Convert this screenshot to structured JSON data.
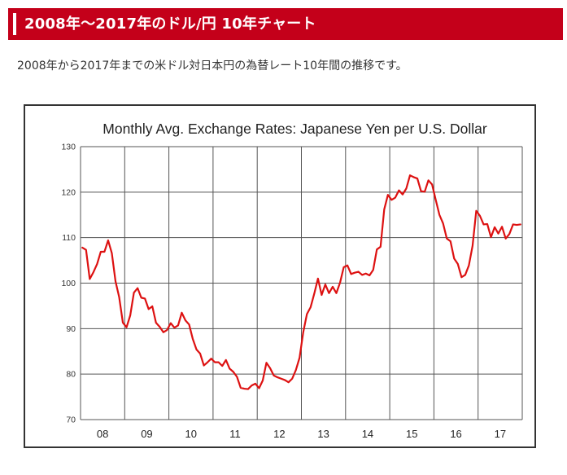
{
  "header": {
    "title": "2008年〜2017年のドル/円 10年チャート",
    "color": "#c4001a"
  },
  "intro": {
    "text": "2008年から2017年までの米ドル対日本円の為替レート10年間の推移です。"
  },
  "chart_data": {
    "type": "line",
    "title": "Monthly Avg. Exchange Rates: Japanese Yen per U.S. Dollar",
    "xlabel": "",
    "ylabel": "",
    "ylim": [
      70,
      130
    ],
    "y_ticks": [
      "130",
      "120",
      "110",
      "100",
      "90",
      "80",
      "70"
    ],
    "x_tick_labels": [
      "08",
      "09",
      "10",
      "11",
      "12",
      "13",
      "14",
      "15",
      "16",
      "17"
    ],
    "grid": true,
    "line_color": "#dd1111",
    "start": "2008-01",
    "series": [
      {
        "values": [
          107.8,
          107.3,
          100.9,
          102.4,
          104.2,
          106.9,
          106.9,
          109.4,
          106.6,
          100.4,
          96.9,
          91.3,
          90.3,
          92.9,
          97.9,
          98.9,
          96.8,
          96.6,
          94.3,
          94.9,
          91.3,
          90.4,
          89.2,
          89.7,
          91.2,
          90.2,
          90.7,
          93.5,
          91.8,
          90.9,
          87.7,
          85.4,
          84.5,
          81.9,
          82.6,
          83.4,
          82.6,
          82.6,
          81.8,
          83.1,
          81.2,
          80.5,
          79.4,
          77.0,
          76.8,
          76.7,
          77.5,
          77.9,
          76.9,
          78.6,
          82.5,
          81.3,
          79.7,
          79.3,
          79.0,
          78.7,
          78.2,
          79.0,
          80.9,
          83.6,
          89.2,
          93.2,
          94.7,
          97.7,
          101.0,
          97.4,
          99.7,
          97.8,
          99.2,
          97.8,
          100.1,
          103.5,
          103.9,
          102.0,
          102.3,
          102.5,
          101.8,
          102.1,
          101.7,
          102.9,
          107.4,
          108.0,
          116.2,
          119.4,
          118.3,
          118.8,
          120.4,
          119.5,
          120.8,
          123.7,
          123.3,
          123.0,
          120.2,
          120.1,
          122.6,
          121.7,
          118.3,
          115.0,
          113.1,
          109.8,
          109.2,
          105.4,
          104.2,
          101.3,
          101.8,
          103.9,
          108.2,
          115.9,
          114.8,
          112.9,
          113.0,
          110.1,
          112.3,
          110.9,
          112.4,
          109.8,
          110.8,
          112.9,
          112.8,
          112.9
        ]
      }
    ]
  }
}
